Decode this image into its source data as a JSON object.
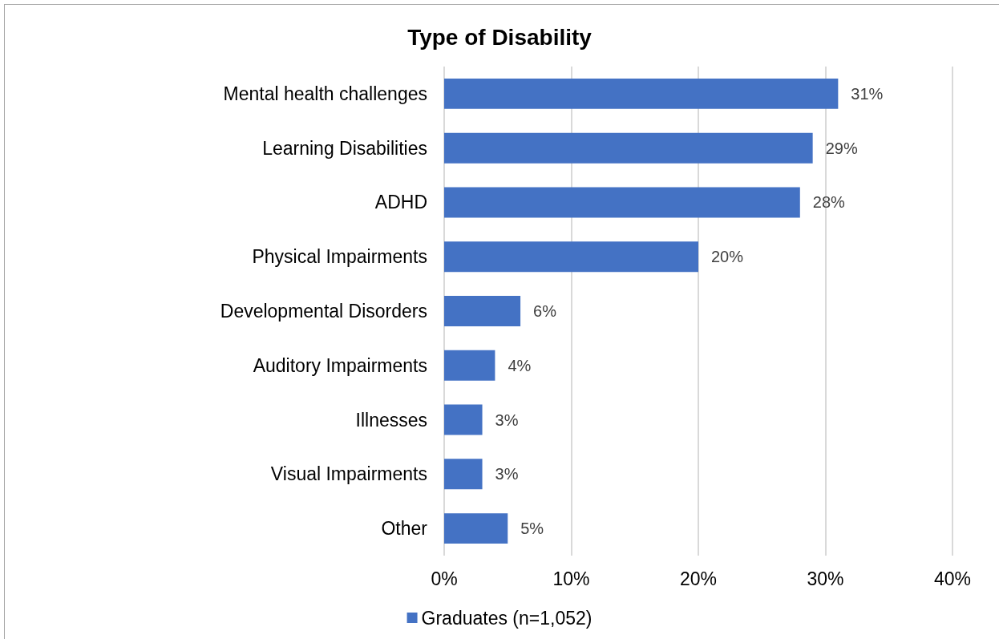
{
  "chart_data": {
    "type": "bar",
    "orientation": "horizontal",
    "title": "Type of Disability",
    "categories": [
      "Mental health challenges",
      "Learning Disabilities",
      "ADHD",
      "Physical Impairments",
      "Developmental Disorders",
      "Auditory Impairments",
      "Illnesses",
      "Visual Impairments",
      "Other"
    ],
    "series": [
      {
        "name": "Graduates (n=1,052)",
        "color": "#4472c4",
        "values": [
          31,
          29,
          28,
          20,
          6,
          4,
          3,
          3,
          5
        ],
        "value_labels": [
          "31%",
          "29%",
          "28%",
          "20%",
          "6%",
          "4%",
          "3%",
          "3%",
          "5%"
        ]
      }
    ],
    "xlim": [
      0,
      40
    ],
    "xticks": [
      {
        "value": 0,
        "label": "0%"
      },
      {
        "value": 10,
        "label": "10%"
      },
      {
        "value": 20,
        "label": "20%"
      },
      {
        "value": 30,
        "label": "30%"
      },
      {
        "value": 40,
        "label": "40%"
      }
    ],
    "grid": "x",
    "legend": "bottom"
  }
}
